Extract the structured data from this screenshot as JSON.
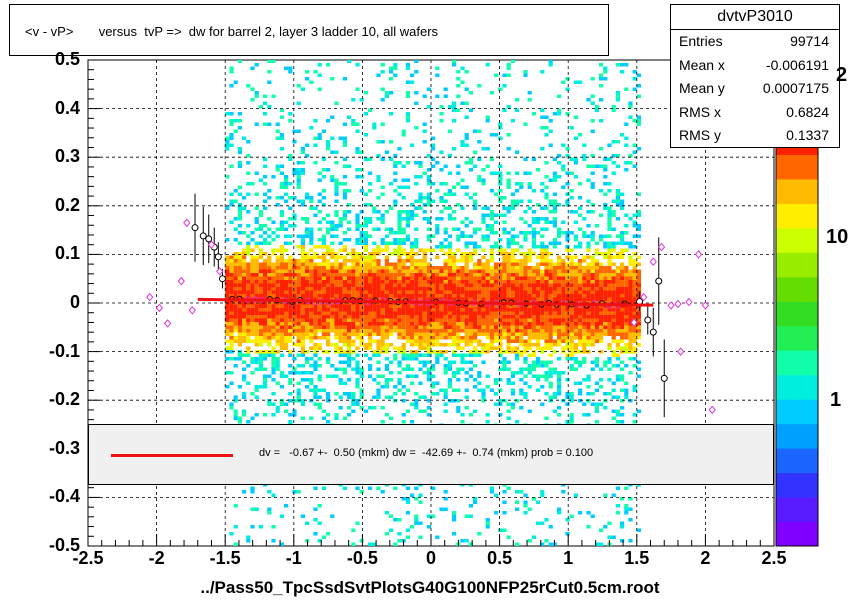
{
  "title": "<v - vP>       versus  tvP =>  dw for barrel 2, layer 3 ladder 10, all wafers",
  "stats": {
    "name": "dvtvP3010",
    "rows": [
      {
        "key": "Entries",
        "value": "99714"
      },
      {
        "key": "Mean x",
        "value": "-0.006191"
      },
      {
        "key": "Mean y",
        "value": "0.0007175"
      },
      {
        "key": "RMS x",
        "value": "0.6824"
      },
      {
        "key": "RMS y",
        "value": "0.1337"
      }
    ]
  },
  "fit_legend": "dv =   -0.67 +-  0.50 (mkm) dw =  -42.69 +-  0.74 (mkm) prob = 0.100",
  "x_axis_title": "../Pass50_TpcSsdSvtPlotsG40G100NFP25rCut0.5cm.root",
  "x_ticks": [
    "-2.5",
    "-2",
    "-1.5",
    "-1",
    "-0.5",
    "0",
    "0.5",
    "1",
    "1.5",
    "2",
    "2.5"
  ],
  "y_ticks": [
    "0.5",
    "0.4",
    "0.3",
    "0.2",
    "0.1",
    "0",
    "-0.1",
    "-0.2",
    "-0.3",
    "-0.4",
    "-0.5"
  ],
  "z_labels": [
    "10",
    "1"
  ],
  "z_exponent": "2",
  "colors": {
    "fit_line": "#ee1111",
    "black_markers": "#000000",
    "magenta_markers": "#dd33dd",
    "palette": [
      "#7f00ff",
      "#5a1aff",
      "#3333ff",
      "#1a66ff",
      "#00a0ff",
      "#00ccff",
      "#00eedd",
      "#11ffaa",
      "#22ee55",
      "#33dd22",
      "#66dd00",
      "#99ee00",
      "#ccff00",
      "#ffee00",
      "#ffbb00",
      "#ff6600",
      "#ff2200"
    ]
  },
  "chart_data": {
    "type": "heatmap",
    "title": "<v - vP>       versus  tvP =>  dw for barrel 2, layer 3 ladder 10, all wafers",
    "xlabel": "../Pass50_TpcSsdSvtPlotsG40G100NFP25rCut0.5cm.root",
    "ylabel": "",
    "xlim": [
      -2.5,
      2.5
    ],
    "ylim": [
      -0.5,
      0.5
    ],
    "z_scale": "log",
    "grid": true,
    "density": {
      "x_range": [
        -1.5,
        1.5
      ],
      "y_core_sigma": 0.045,
      "y_halo_sigma": 0.15
    },
    "fit": {
      "type": "line",
      "x_range": [
        -1.7,
        1.62
      ],
      "y_at_start": 0.0075,
      "y_at_end": -0.0045,
      "dv_mkm": -0.67,
      "dv_err": 0.5,
      "dw_mkm": -42.69,
      "dw_err": 0.74,
      "prob": 0.1
    },
    "series": [
      {
        "marker": "black-open-circle",
        "points": [
          {
            "x": -1.72,
            "y": 0.155,
            "err": 0.07
          },
          {
            "x": -1.66,
            "y": 0.138,
            "err": 0.06
          },
          {
            "x": -1.62,
            "y": 0.132,
            "err": 0.05
          },
          {
            "x": -1.58,
            "y": 0.115,
            "err": 0.04
          },
          {
            "x": -1.55,
            "y": 0.095,
            "err": 0.03
          },
          {
            "x": -1.52,
            "y": 0.05,
            "err": 0.02
          },
          {
            "x": 1.52,
            "y": 0.003,
            "err": 0.02
          },
          {
            "x": 1.58,
            "y": -0.035,
            "err": 0.03
          },
          {
            "x": 1.62,
            "y": -0.06,
            "err": 0.05
          },
          {
            "x": 1.66,
            "y": 0.045,
            "err": 0.09
          },
          {
            "x": 1.7,
            "y": -0.155,
            "err": 0.08
          }
        ]
      },
      {
        "marker": "magenta-open-diamond",
        "points": [
          {
            "x": -2.05,
            "y": 0.012
          },
          {
            "x": -1.98,
            "y": -0.01
          },
          {
            "x": -1.92,
            "y": -0.042
          },
          {
            "x": -1.82,
            "y": 0.045
          },
          {
            "x": -1.78,
            "y": 0.165
          },
          {
            "x": -1.74,
            "y": -0.015
          },
          {
            "x": -1.6,
            "y": 0.12
          },
          {
            "x": -1.54,
            "y": 0.065
          },
          {
            "x": 1.48,
            "y": -0.04
          },
          {
            "x": 1.55,
            "y": 0.012
          },
          {
            "x": 1.62,
            "y": 0.085
          },
          {
            "x": 1.68,
            "y": 0.115
          },
          {
            "x": 1.75,
            "y": -0.005
          },
          {
            "x": 1.8,
            "y": -0.002
          },
          {
            "x": 1.88,
            "y": 0.002
          },
          {
            "x": 1.95,
            "y": 0.1
          },
          {
            "x": 2.0,
            "y": -0.005
          },
          {
            "x": 1.82,
            "y": -0.1
          },
          {
            "x": 2.05,
            "y": -0.22
          }
        ]
      }
    ]
  }
}
